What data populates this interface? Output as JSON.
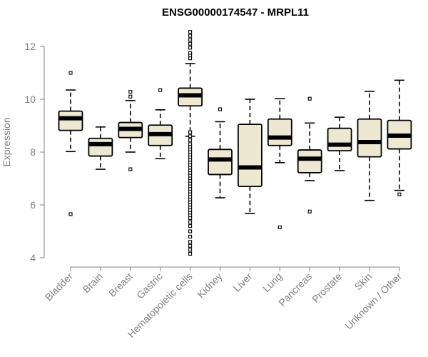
{
  "chart_data": {
    "type": "box",
    "title": "ENSG00000174547 - MRPL11",
    "xlabel": "",
    "ylabel": "Expression",
    "ylim": [
      4,
      12.5
    ],
    "yticks": [
      4,
      6,
      8,
      10,
      12
    ],
    "box_fill": "#ede8d1",
    "groups": [
      {
        "name": "Bladder",
        "whisker_low": 8.02,
        "q1": 8.82,
        "median": 9.28,
        "q3": 9.55,
        "whisker_high": 10.35,
        "outliers": [
          11.0,
          5.65
        ]
      },
      {
        "name": "Brain",
        "whisker_low": 7.35,
        "q1": 7.85,
        "median": 8.3,
        "q3": 8.52,
        "whisker_high": 8.95,
        "outliers": []
      },
      {
        "name": "Breast",
        "whisker_low": 8.0,
        "q1": 8.55,
        "median": 8.88,
        "q3": 9.12,
        "whisker_high": 9.95,
        "outliers": [
          10.28,
          10.1,
          7.35
        ]
      },
      {
        "name": "Gastric",
        "whisker_low": 7.75,
        "q1": 8.25,
        "median": 8.68,
        "q3": 9.02,
        "whisker_high": 9.6,
        "outliers": [
          10.35
        ]
      },
      {
        "name": "Hematopoietic cells",
        "whisker_low": 8.6,
        "q1": 9.75,
        "median": 10.15,
        "q3": 10.42,
        "whisker_high": 11.35,
        "outliers": [
          12.55,
          12.4,
          12.25,
          12.1,
          11.95,
          11.75,
          11.65,
          11.55,
          8.75,
          8.6,
          8.45,
          8.3,
          8.2,
          8.1,
          8.0,
          7.9,
          7.8,
          7.7,
          7.6,
          7.5,
          7.4,
          7.3,
          7.2,
          7.1,
          7.0,
          6.9,
          6.8,
          6.7,
          6.6,
          6.5,
          6.4,
          6.3,
          6.2,
          6.1,
          6.0,
          5.9,
          5.8,
          5.7,
          5.6,
          5.5,
          5.35,
          5.2,
          5.0,
          4.8,
          4.6,
          4.45,
          4.3,
          4.15
        ]
      },
      {
        "name": "Kidney",
        "whisker_low": 6.27,
        "q1": 7.15,
        "median": 7.72,
        "q3": 8.1,
        "whisker_high": 9.15,
        "outliers": [
          9.62
        ]
      },
      {
        "name": "Liver",
        "whisker_low": 5.68,
        "q1": 6.7,
        "median": 7.42,
        "q3": 9.05,
        "whisker_high": 10.0,
        "outliers": []
      },
      {
        "name": "Lung",
        "whisker_low": 7.6,
        "q1": 8.25,
        "median": 8.55,
        "q3": 9.25,
        "whisker_high": 10.02,
        "outliers": [
          5.15
        ]
      },
      {
        "name": "Pancreas",
        "whisker_low": 6.92,
        "q1": 7.22,
        "median": 7.75,
        "q3": 8.08,
        "whisker_high": 9.1,
        "outliers": [
          10.02,
          5.75
        ]
      },
      {
        "name": "Prostate",
        "whisker_low": 7.3,
        "q1": 8.05,
        "median": 8.28,
        "q3": 8.9,
        "whisker_high": 9.32,
        "outliers": []
      },
      {
        "name": "Skin",
        "whisker_low": 6.17,
        "q1": 7.82,
        "median": 8.38,
        "q3": 9.25,
        "whisker_high": 10.3,
        "outliers": []
      },
      {
        "name": "Unknown / Other",
        "whisker_low": 6.55,
        "q1": 8.12,
        "median": 8.62,
        "q3": 9.2,
        "whisker_high": 10.72,
        "outliers": [
          6.4
        ]
      }
    ]
  }
}
